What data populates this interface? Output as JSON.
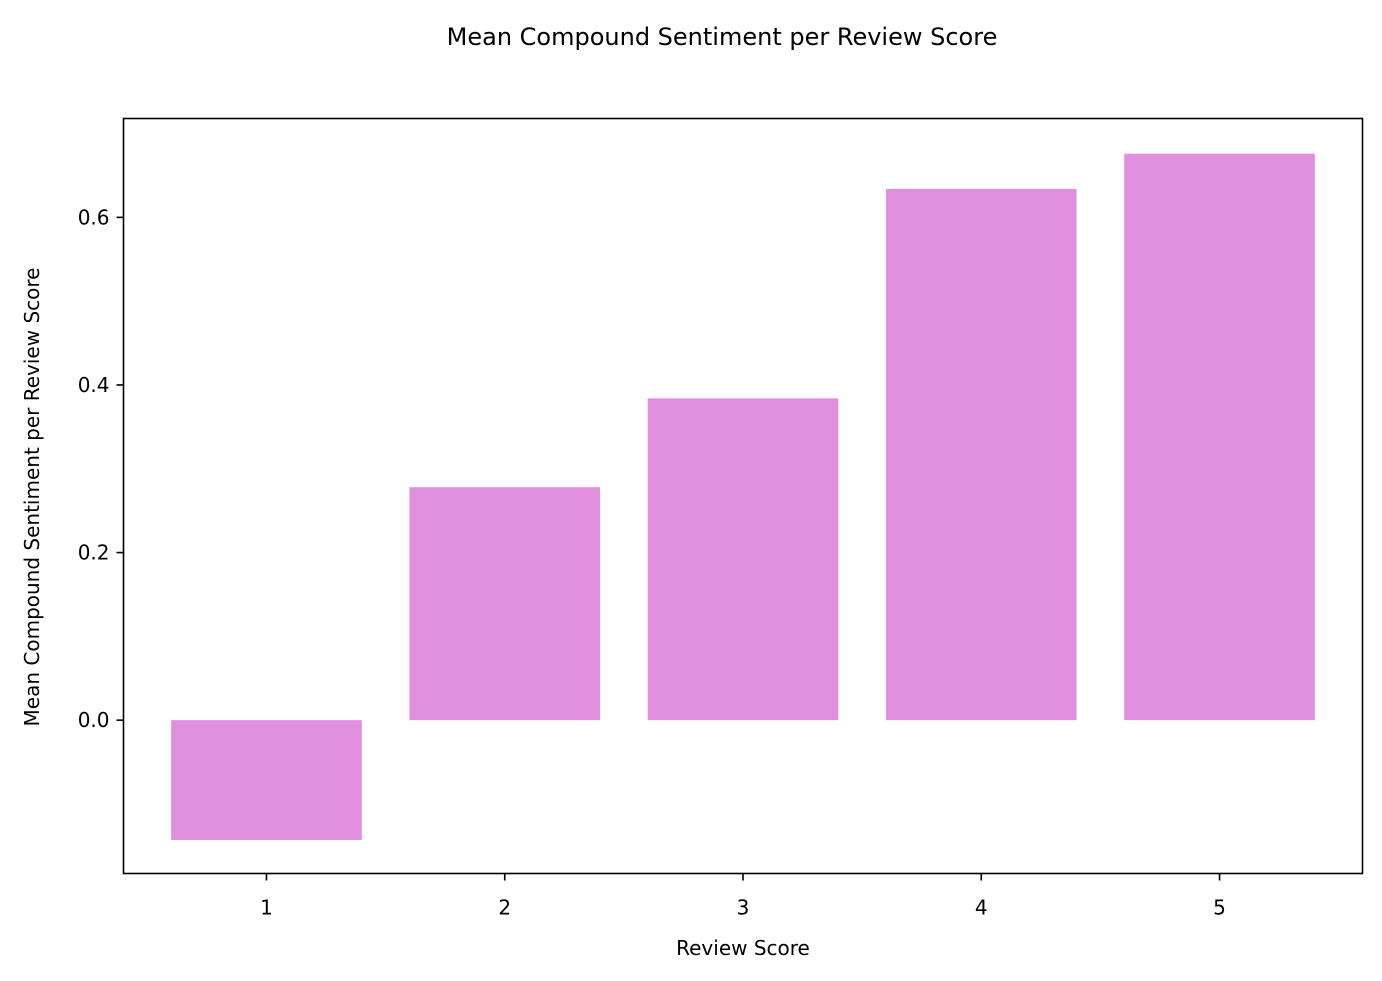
{
  "chart_data": {
    "type": "bar",
    "title": "Mean Compound Sentiment per Review Score",
    "xlabel": "Review Score",
    "ylabel": "Mean Compound Sentiment per Review Score",
    "categories": [
      "1",
      "2",
      "3",
      "4",
      "5"
    ],
    "values": [
      -0.143,
      0.278,
      0.384,
      0.634,
      0.676
    ],
    "ylim": [
      -0.183,
      0.718
    ],
    "yticks": [
      0.0,
      0.2,
      0.4,
      0.6
    ],
    "ytick_labels": [
      "0.0",
      "0.2",
      "0.4",
      "0.6"
    ],
    "bar_color": "#e08fdf",
    "grid": false,
    "legend": "none"
  }
}
